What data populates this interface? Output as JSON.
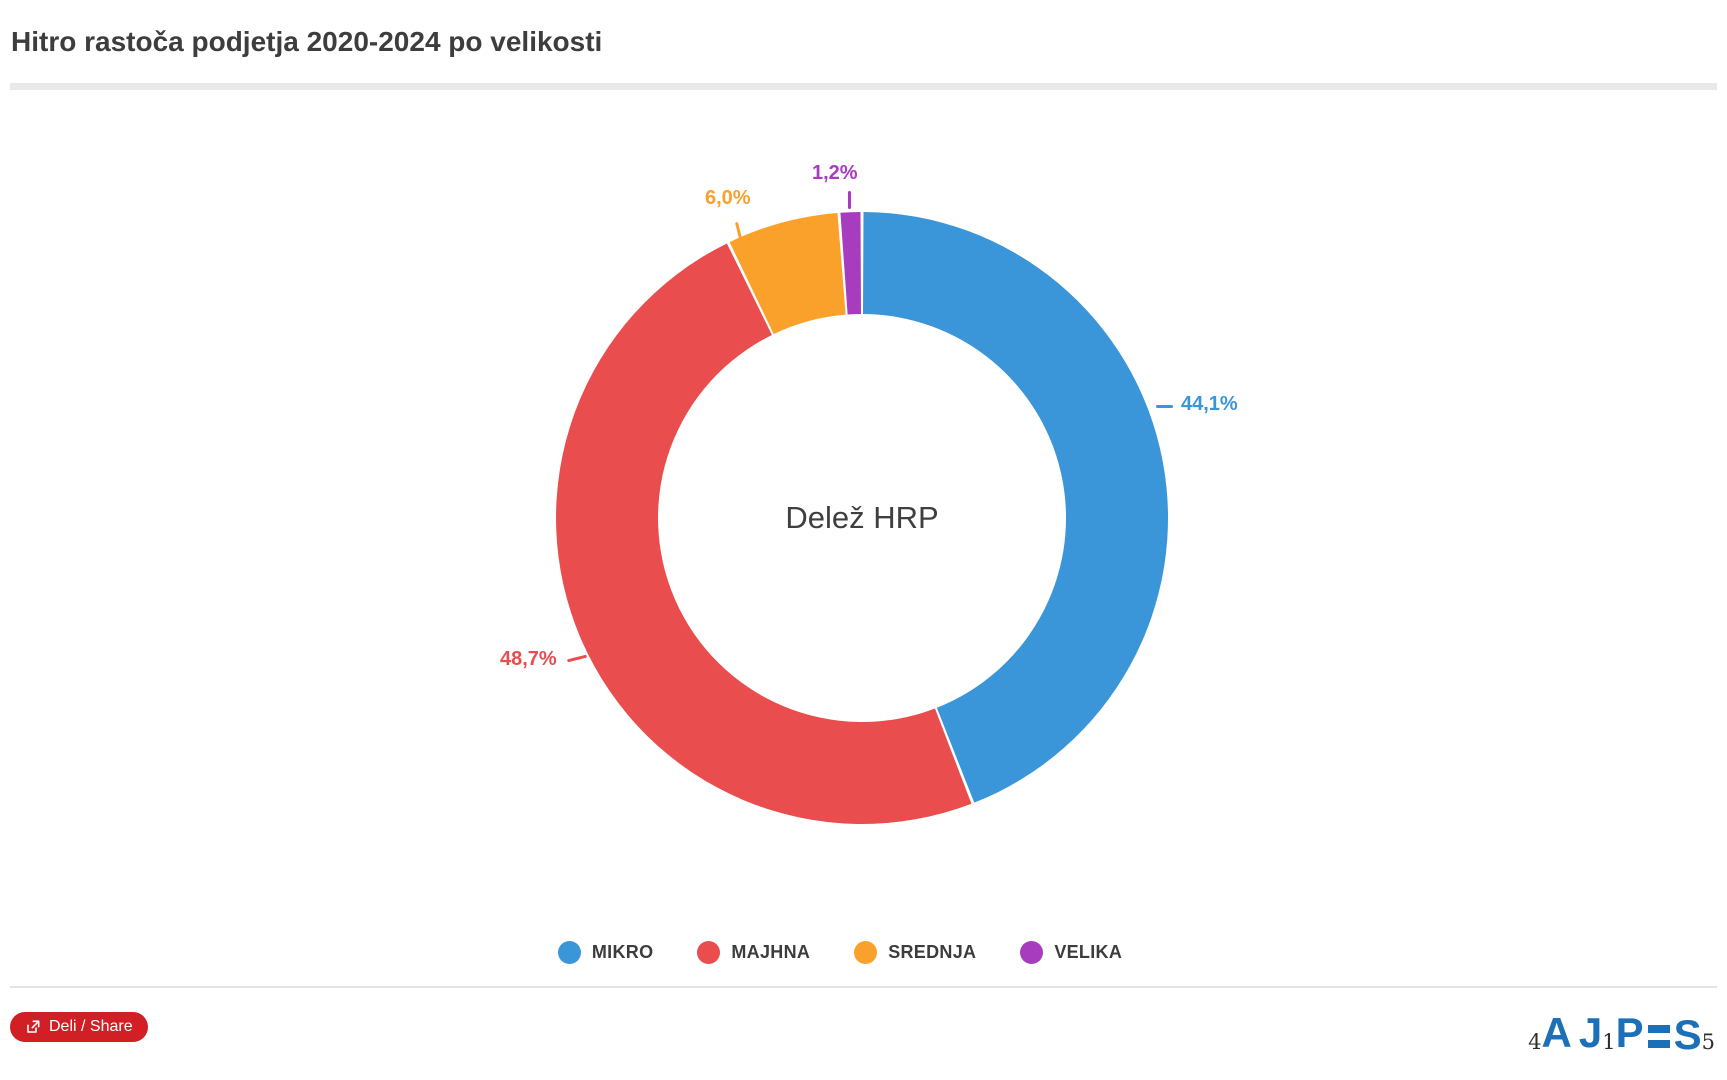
{
  "header": {
    "title": "Hitro rastoča podjetja 2020-2024 po velikosti"
  },
  "chart_data": {
    "type": "pie",
    "subtype": "donut",
    "center_label": "Delež HRP",
    "categories": [
      "MIKRO",
      "MAJHNA",
      "SREDNJA",
      "VELIKA"
    ],
    "values": [
      44.1,
      48.7,
      6.0,
      1.2
    ],
    "value_labels": [
      "44,1%",
      "48,7%",
      "6,0%",
      "1,2%"
    ],
    "colors": [
      "#3b95d9",
      "#e94d4d",
      "#f9a12b",
      "#a83cbf"
    ],
    "start_angle_deg": 0,
    "direction": "clockwise",
    "inner_radius_ratio": 0.665,
    "legend_position": "bottom"
  },
  "footer": {
    "share_button": {
      "label": "Deli / Share",
      "color": "#d11f26"
    },
    "logo": {
      "name": "AJPES",
      "digit_4": "4",
      "letter_a": "A",
      "letter_j": "J",
      "digit_1": "1",
      "letter_p": "P",
      "letter_s": "S",
      "digit_5": "5",
      "color": "#1c70b8"
    }
  }
}
